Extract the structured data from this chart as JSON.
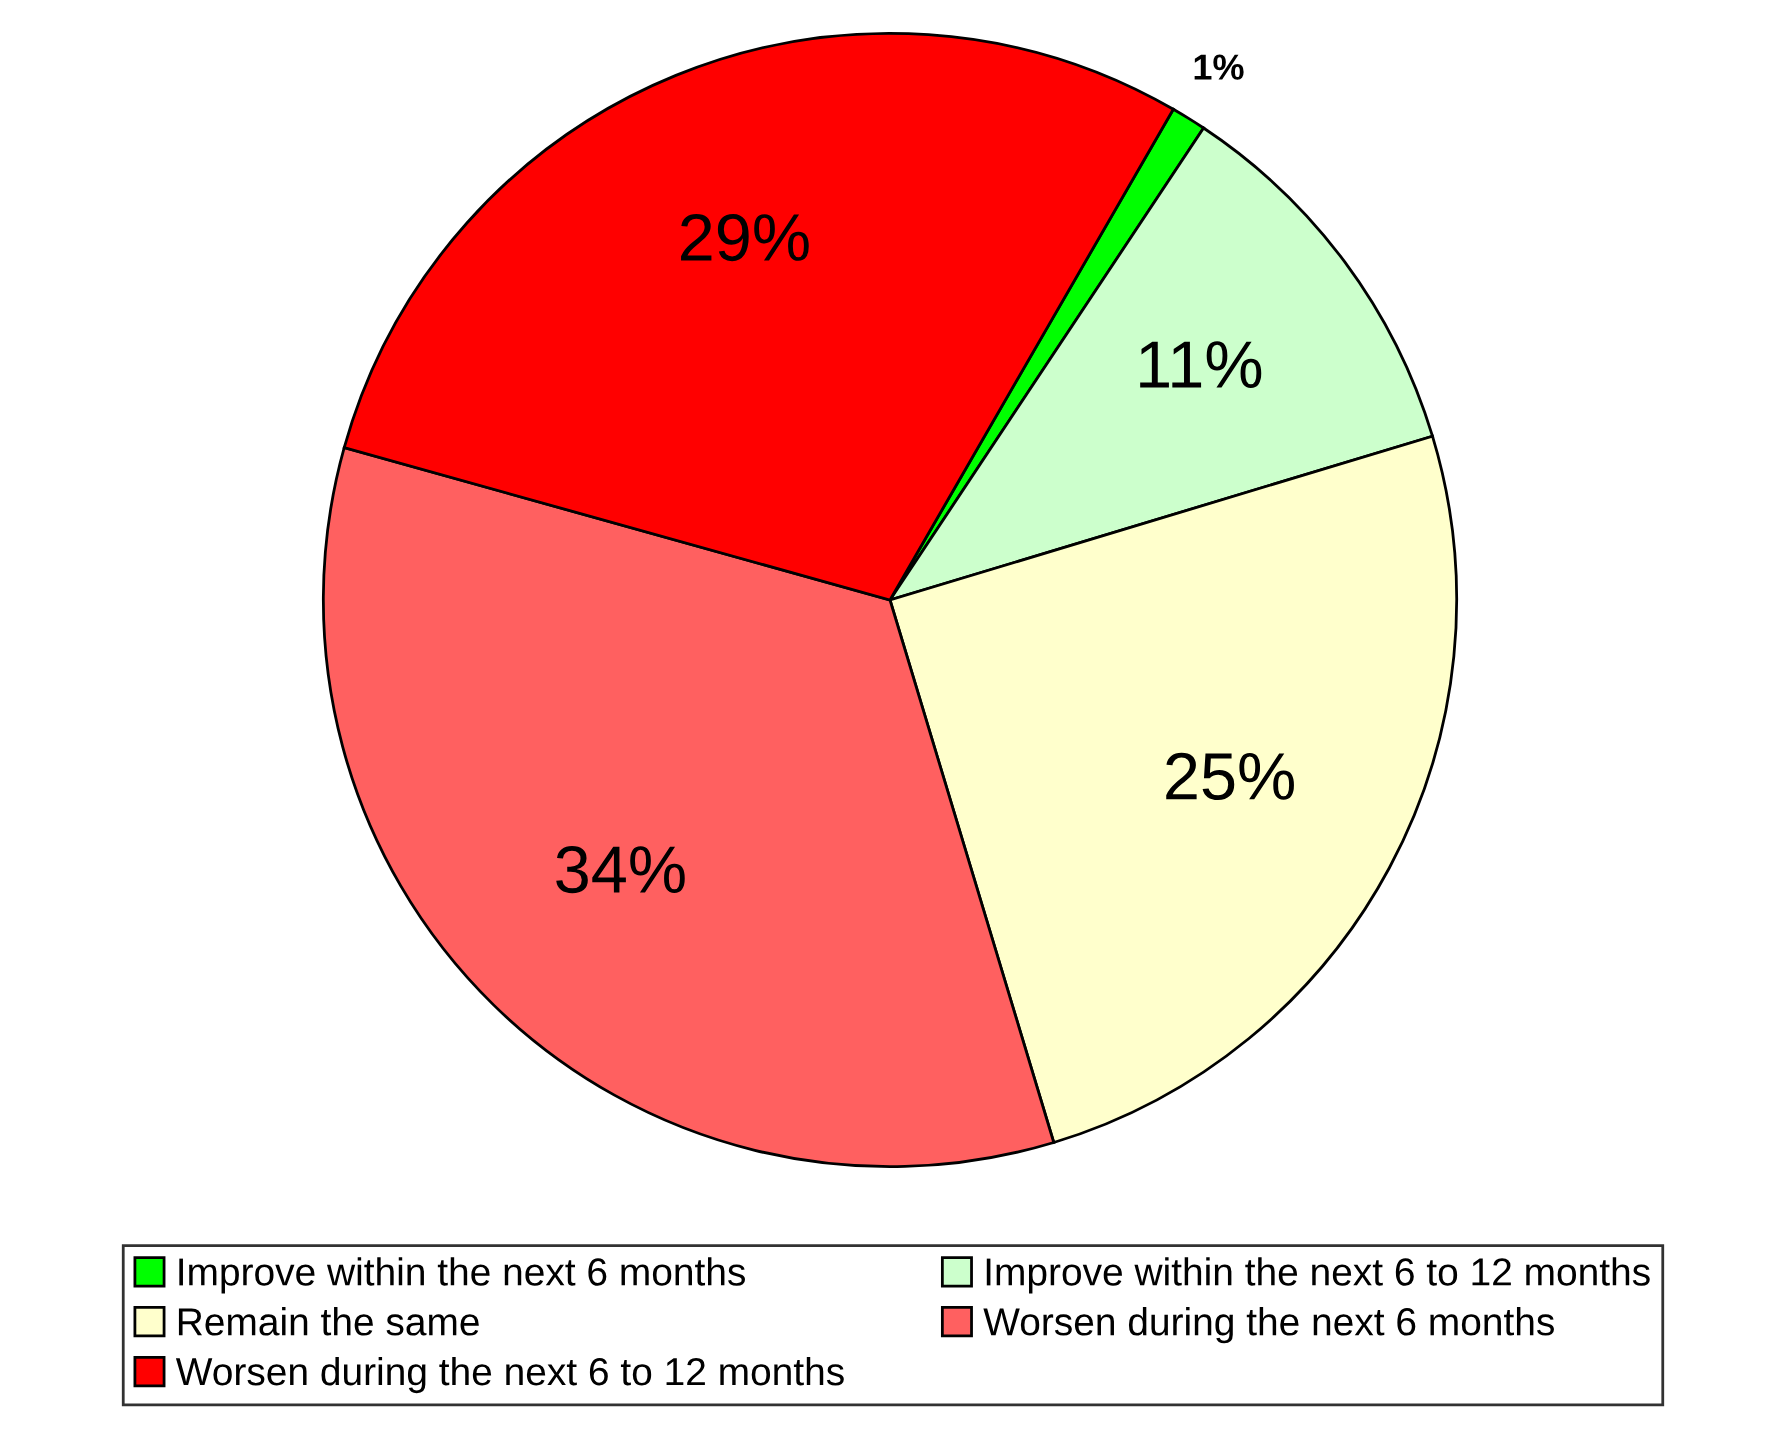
{
  "chart_data": {
    "type": "pie",
    "categories": [
      "Improve within the next 6 months",
      "Improve within the next 6 to 12 months",
      "Remain the same",
      "Worsen during the next 6 months",
      "Worsen during the next 6 to 12 months"
    ],
    "values": [
      1,
      11,
      25,
      34,
      29
    ],
    "colors": [
      "#00ff00",
      "#ccffcc",
      "#ffffcc",
      "#ff6060",
      "#ff0000"
    ],
    "value_labels": [
      "1%",
      "11%",
      "25%",
      "34%",
      "29%"
    ],
    "legend": "bottom"
  }
}
